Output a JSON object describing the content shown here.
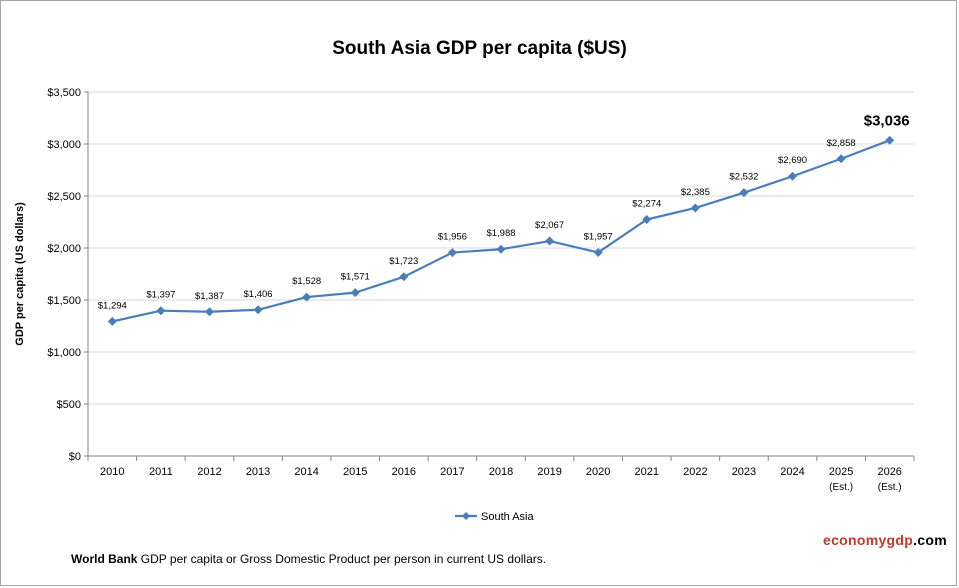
{
  "chart_data": {
    "type": "line",
    "title": "South Asia GDP per capita ($US)",
    "ylabel": "GDP per capita (US dollars)",
    "xlabel": "",
    "categories": [
      "2010",
      "2011",
      "2012",
      "2013",
      "2014",
      "2015",
      "2016",
      "2017",
      "2018",
      "2019",
      "2020",
      "2021",
      "2022",
      "2023",
      "2024",
      "2025",
      "2026"
    ],
    "category_sublabels": [
      "",
      "",
      "",
      "",
      "",
      "",
      "",
      "",
      "",
      "",
      "",
      "",
      "",
      "",
      "",
      "(Est.)",
      "(Est.)"
    ],
    "series": [
      {
        "name": "South Asia",
        "values": [
          1294,
          1397,
          1387,
          1406,
          1528,
          1571,
          1723,
          1956,
          1988,
          2067,
          1957,
          2274,
          2385,
          2532,
          2690,
          2858,
          3036
        ],
        "labels": [
          "$1,294",
          "$1,397",
          "$1,387",
          "$1,406",
          "$1,528",
          "$1,571",
          "$1,723",
          "$1,956",
          "$1,988",
          "$2,067",
          "$1,957",
          "$2,274",
          "$2,385",
          "$2,532",
          "$2,690",
          "$2,858",
          "$3,036"
        ],
        "color": "#4a7ebb"
      }
    ],
    "ylim": [
      0,
      3500
    ],
    "yticks": [
      0,
      500,
      1000,
      1500,
      2000,
      2500,
      3000,
      3500
    ],
    "ytick_labels": [
      "$0",
      "$500",
      "$1,000",
      "$1,500",
      "$2,000",
      "$2,500",
      "$3,000",
      "$3,500"
    ],
    "grid": true,
    "legend_position": "bottom"
  },
  "footer": {
    "source": "World Bank",
    "note": "GDP per capita or Gross Domestic Product per person in current US dollars."
  },
  "brand": {
    "part1": "economygdp",
    "part2": ".com"
  }
}
